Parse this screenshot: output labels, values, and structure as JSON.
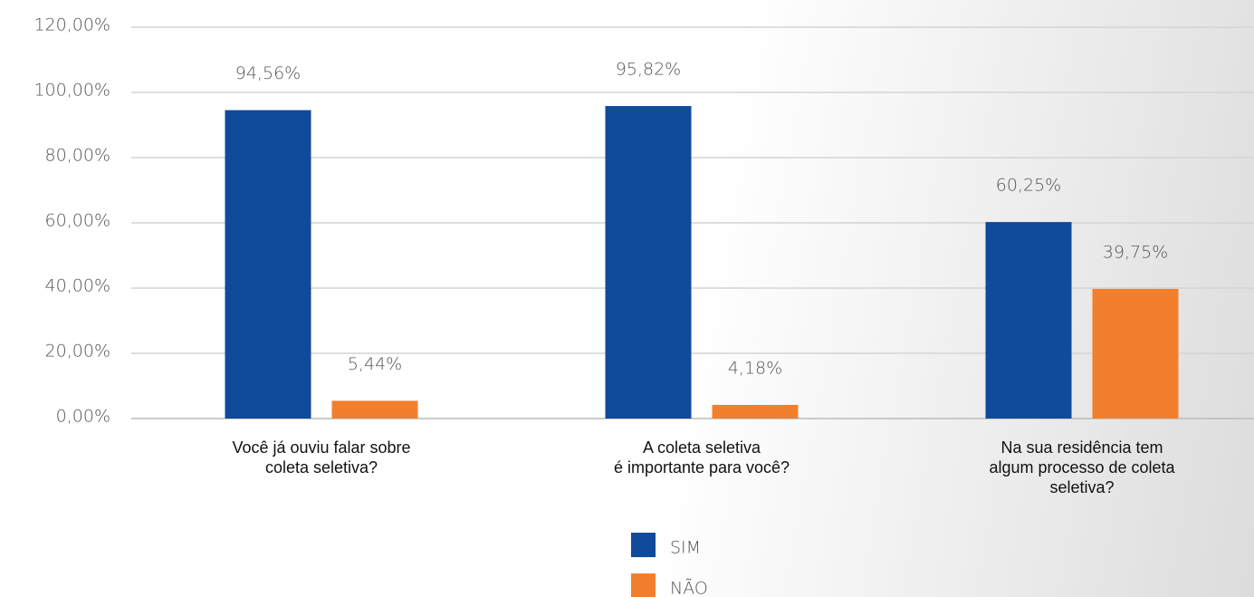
{
  "chart_data": {
    "type": "bar",
    "categories": [
      "Você já ouviu falar sobre\ncoleta seletiva?",
      "A coleta seletiva\né importante para você?",
      "Na sua residência tem\nalgum processo de coleta\nseletiva?"
    ],
    "series": [
      {
        "name": "SIM",
        "color": "#0f4a9b",
        "values": [
          94.56,
          95.82,
          60.25
        ],
        "value_labels": [
          "94,56%",
          "95,82%",
          "60,25%"
        ]
      },
      {
        "name": "NÃO",
        "color": "#f27f2d",
        "values": [
          5.44,
          4.18,
          39.75
        ],
        "value_labels": [
          "5,44%",
          "4,18%",
          "39,75%"
        ]
      }
    ],
    "ylim": [
      0,
      120
    ],
    "yticks": [
      {
        "value": 0,
        "label": "0,00%"
      },
      {
        "value": 20,
        "label": "20,00%"
      },
      {
        "value": 40,
        "label": "40,00%"
      },
      {
        "value": 60,
        "label": "60,00%"
      },
      {
        "value": 80,
        "label": "80,00%"
      },
      {
        "value": 100,
        "label": "100,00%"
      },
      {
        "value": 120,
        "label": "120,00%"
      }
    ],
    "grid": true
  }
}
